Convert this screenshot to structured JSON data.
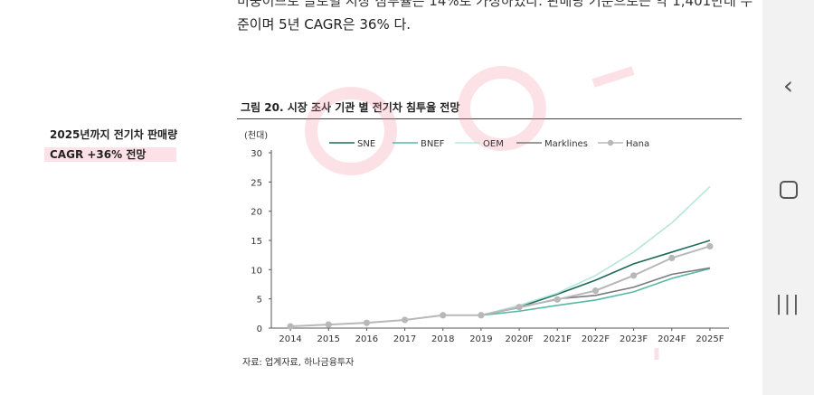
{
  "document": {
    "body_line_1": "비중이므로 글로벌 시장 침투율은 14%로 가정하였다. 판매량 기준으로는 약 1,401만대 수",
    "body_line_2": "준이며 5년 CAGR은 36% 다.",
    "side_note_line_1": "2025년까지 전기차 판매량",
    "side_note_line_2": "CAGR +36% 전망",
    "figure_title": "그림 20. 시장 조사 기관 별 전기차 침투율 전망",
    "source": "자료: 업계자료, 하나금융투자"
  },
  "nav": {
    "back_icon": "chevron-left-icon",
    "home_icon": "rounded-square-icon",
    "recents_icon": "three-bars-icon"
  },
  "chart_data": {
    "type": "line",
    "unit_label": "(천대)",
    "categories": [
      "2014",
      "2015",
      "2016",
      "2017",
      "2018",
      "2019",
      "2020F",
      "2021F",
      "2022F",
      "2023F",
      "2024F",
      "2025F"
    ],
    "ylim": [
      0,
      30
    ],
    "yticks": [
      0,
      5,
      10,
      15,
      20,
      25,
      30
    ],
    "legend_position": "top",
    "series": [
      {
        "name": "SNE",
        "color": "#1e6b58",
        "marker": false,
        "values": [
          null,
          null,
          null,
          null,
          null,
          2.2,
          3.6,
          5.8,
          8.2,
          11.0,
          13.0,
          15.0
        ]
      },
      {
        "name": "BNEF",
        "color": "#57b9a4",
        "marker": false,
        "values": [
          null,
          null,
          null,
          null,
          null,
          2.2,
          2.9,
          3.9,
          4.8,
          6.2,
          8.5,
          10.2
        ]
      },
      {
        "name": "OEM",
        "color": "#b7e6dc",
        "marker": false,
        "values": [
          null,
          null,
          null,
          null,
          null,
          2.2,
          3.9,
          6.0,
          9.0,
          13.0,
          18.0,
          24.2
        ]
      },
      {
        "name": "Marklines",
        "color": "#7a7a7a",
        "marker": false,
        "values": [
          null,
          null,
          null,
          null,
          null,
          2.2,
          3.5,
          5.0,
          5.6,
          7.0,
          9.2,
          10.3
        ]
      },
      {
        "name": "Hana",
        "color": "#b8b8b8",
        "marker": true,
        "values": [
          0.3,
          0.6,
          0.9,
          1.4,
          2.2,
          2.2,
          3.6,
          4.9,
          6.4,
          9.0,
          12.0,
          14.0
        ]
      }
    ]
  }
}
